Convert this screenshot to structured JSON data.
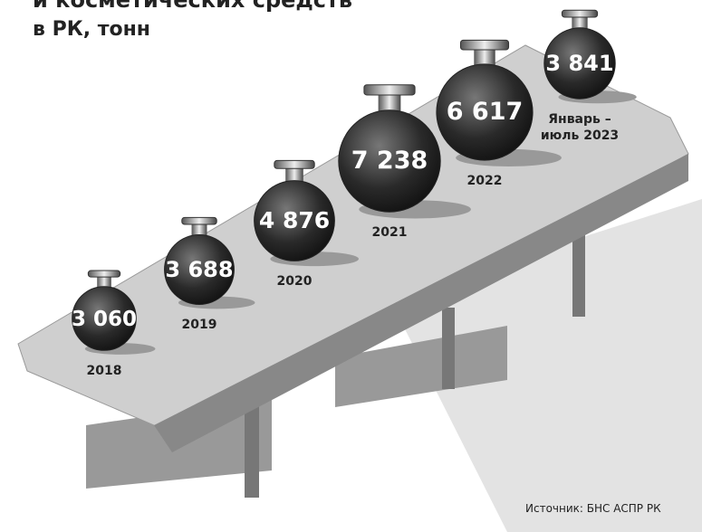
{
  "chart_data": {
    "type": "pictogram",
    "title": "и косметических средств",
    "subtitle": "в РК, тонн",
    "categories": [
      "2018",
      "2019",
      "2020",
      "2021",
      "2022",
      "Январь – июль 2023"
    ],
    "values": [
      3060,
      3688,
      4876,
      7238,
      6617,
      3841
    ],
    "value_labels": [
      "3 060",
      "3 688",
      "4 876",
      "7 238",
      "6 617",
      "3 841"
    ],
    "source": "Источник: БНС АСПР РК"
  }
}
